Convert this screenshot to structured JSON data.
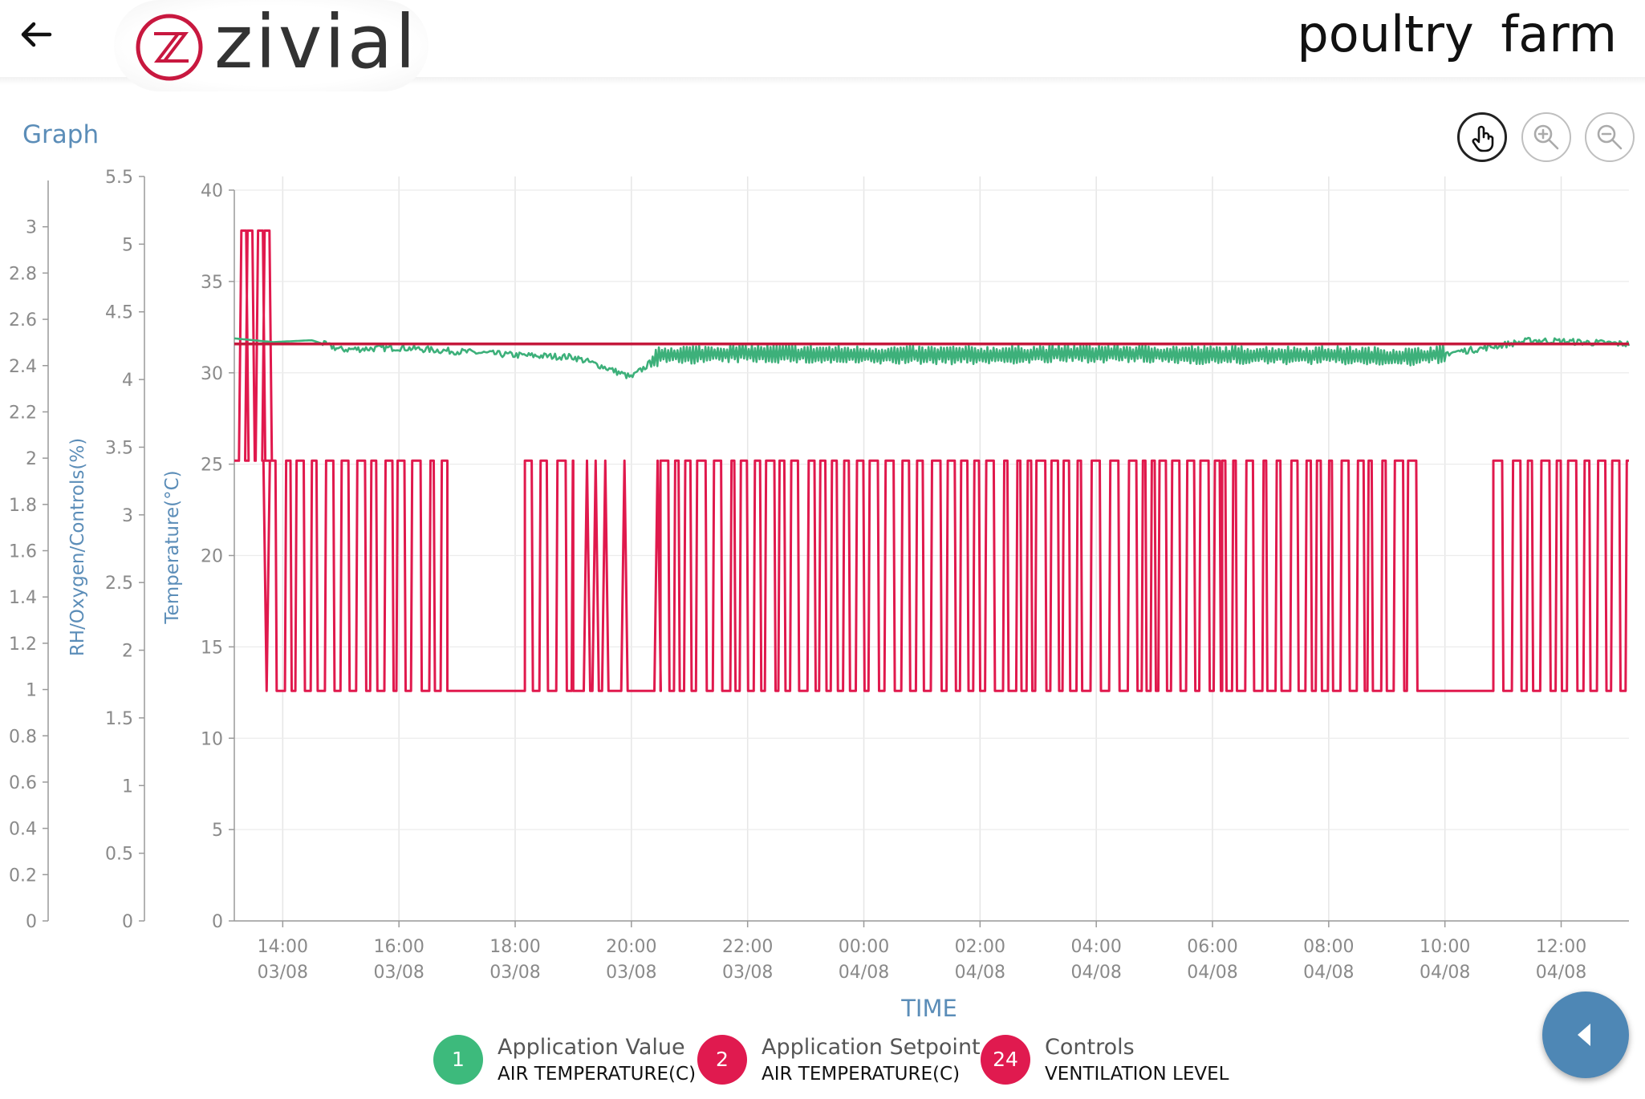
{
  "header": {
    "logo_text": "zivial",
    "farm_title": "poultry  farm"
  },
  "graph_label": "Graph",
  "icons": {
    "back": "arrow-left-icon",
    "pan": "hand-pointer-icon",
    "zoom_in": "zoom-in-icon",
    "zoom_out": "zoom-out-icon",
    "collapse": "caret-left-icon"
  },
  "colors": {
    "application_value": "#3db07a",
    "setpoint": "#c5193c",
    "controls": "#e0194d",
    "accent": "#4e87b5"
  },
  "legend": [
    {
      "badge": "1",
      "title": "Application Value",
      "subtitle": "AIR TEMPERATURE(C)",
      "color": "#3dba7c"
    },
    {
      "badge": "2",
      "title": "Application Setpoint",
      "subtitle": "AIR TEMPERATURE(C)",
      "color": "#e01a4f"
    },
    {
      "badge": "24",
      "title": "Controls",
      "subtitle": "VENTILATION LEVEL",
      "color": "#e01a4f"
    }
  ],
  "chart_data": {
    "type": "line",
    "xlabel": "TIME",
    "grid": true,
    "x_ticks": [
      {
        "time": "14:00",
        "date": "03/08"
      },
      {
        "time": "16:00",
        "date": "03/08"
      },
      {
        "time": "18:00",
        "date": "03/08"
      },
      {
        "time": "20:00",
        "date": "03/08"
      },
      {
        "time": "22:00",
        "date": "03/08"
      },
      {
        "time": "00:00",
        "date": "04/08"
      },
      {
        "time": "02:00",
        "date": "04/08"
      },
      {
        "time": "04:00",
        "date": "04/08"
      },
      {
        "time": "06:00",
        "date": "04/08"
      },
      {
        "time": "08:00",
        "date": "04/08"
      },
      {
        "time": "10:00",
        "date": "04/08"
      },
      {
        "time": "12:00",
        "date": "04/08"
      }
    ],
    "x_range": [
      "03/08 13:10",
      "04/08 13:10"
    ],
    "axes": [
      {
        "id": "rh",
        "label": "",
        "ylim": [
          0,
          3.2
        ],
        "ticks": [
          "0",
          "0.2",
          "0.4",
          "0.6",
          "0.8",
          "1",
          "1.2",
          "1.4",
          "1.6",
          "1.8",
          "2",
          "2.2",
          "2.4",
          "2.6",
          "2.8",
          "3"
        ]
      },
      {
        "id": "controls",
        "label": "RH/Oxygen/Controls(%)",
        "ylim": [
          0,
          5.5
        ],
        "ticks": [
          "0",
          "0.5",
          "1",
          "1.5",
          "2",
          "2.5",
          "3",
          "3.5",
          "4",
          "4.5",
          "5",
          "5.5"
        ]
      },
      {
        "id": "temperature",
        "label": "Temperature(°C)",
        "ylim": [
          0,
          40
        ],
        "ticks": [
          "0",
          "5",
          "10",
          "15",
          "20",
          "25",
          "30",
          "35",
          "40"
        ]
      }
    ],
    "series": [
      {
        "name": "Application Value AIR TEMPERATURE(C)",
        "axis": "temperature",
        "points": [
          [
            "03/08 13:10",
            31.3
          ],
          [
            "03/08 13:50",
            31.1
          ],
          [
            "03/08 14:30",
            31.2
          ],
          [
            "03/08 15:00",
            30.7
          ],
          [
            "03/08 16:00",
            30.8
          ],
          [
            "03/08 17:00",
            30.6
          ],
          [
            "03/08 18:00",
            30.4
          ],
          [
            "03/08 19:00",
            30.3
          ],
          [
            "03/08 19:30",
            29.8
          ],
          [
            "03/08 20:00",
            29.2
          ],
          [
            "03/08 20:30",
            30.4
          ],
          [
            "03/08 22:00",
            30.5
          ],
          [
            "04/08 00:00",
            30.4
          ],
          [
            "04/08 02:00",
            30.4
          ],
          [
            "04/08 04:00",
            30.5
          ],
          [
            "04/08 06:00",
            30.4
          ],
          [
            "04/08 08:00",
            30.4
          ],
          [
            "04/08 09:30",
            30.3
          ],
          [
            "04/08 10:30",
            30.7
          ],
          [
            "04/08 11:30",
            31.2
          ],
          [
            "04/08 13:10",
            31.0
          ]
        ],
        "typical_range": [
          29.5,
          31.6
        ]
      },
      {
        "name": "Application Setpoint AIR TEMPERATURE(C)",
        "axis": "temperature",
        "points": [
          [
            "03/08 13:10",
            31.0
          ],
          [
            "04/08 13:10",
            31.0
          ]
        ]
      },
      {
        "name": "Controls VENTILATION LEVEL",
        "axis": "controls",
        "levels": [
          1.7,
          3.4,
          5.1
        ],
        "segments": [
          {
            "from": "03/08 13:10",
            "to": "03/08 13:50",
            "pattern": "3.4 with pulses to 5.1"
          },
          {
            "from": "03/08 13:50",
            "to": "03/08 16:50",
            "pattern": "rapid switching 1.7 ↔ 3.4"
          },
          {
            "from": "03/08 16:50",
            "to": "03/08 18:10",
            "pattern": "1.7"
          },
          {
            "from": "03/08 18:10",
            "to": "03/08 19:00",
            "pattern": "rapid switching 1.7 ↔ 3.4"
          },
          {
            "from": "03/08 19:00",
            "to": "03/08 20:30",
            "pattern": "1.7 with occasional 3.4"
          },
          {
            "from": "03/08 20:30",
            "to": "04/08 06:10",
            "pattern": "rapid switching 1.7 ↔ 3.4"
          },
          {
            "from": "04/08 06:10",
            "to": "04/08 09:40",
            "pattern": "rapid switching 1.7 ↔ 3.4"
          },
          {
            "from": "04/08 09:40",
            "to": "04/08 10:50",
            "pattern": "1.7"
          },
          {
            "from": "04/08 10:50",
            "to": "04/08 13:10",
            "pattern": "rapid switching 1.7 ↔ 3.4"
          }
        ]
      }
    ]
  }
}
